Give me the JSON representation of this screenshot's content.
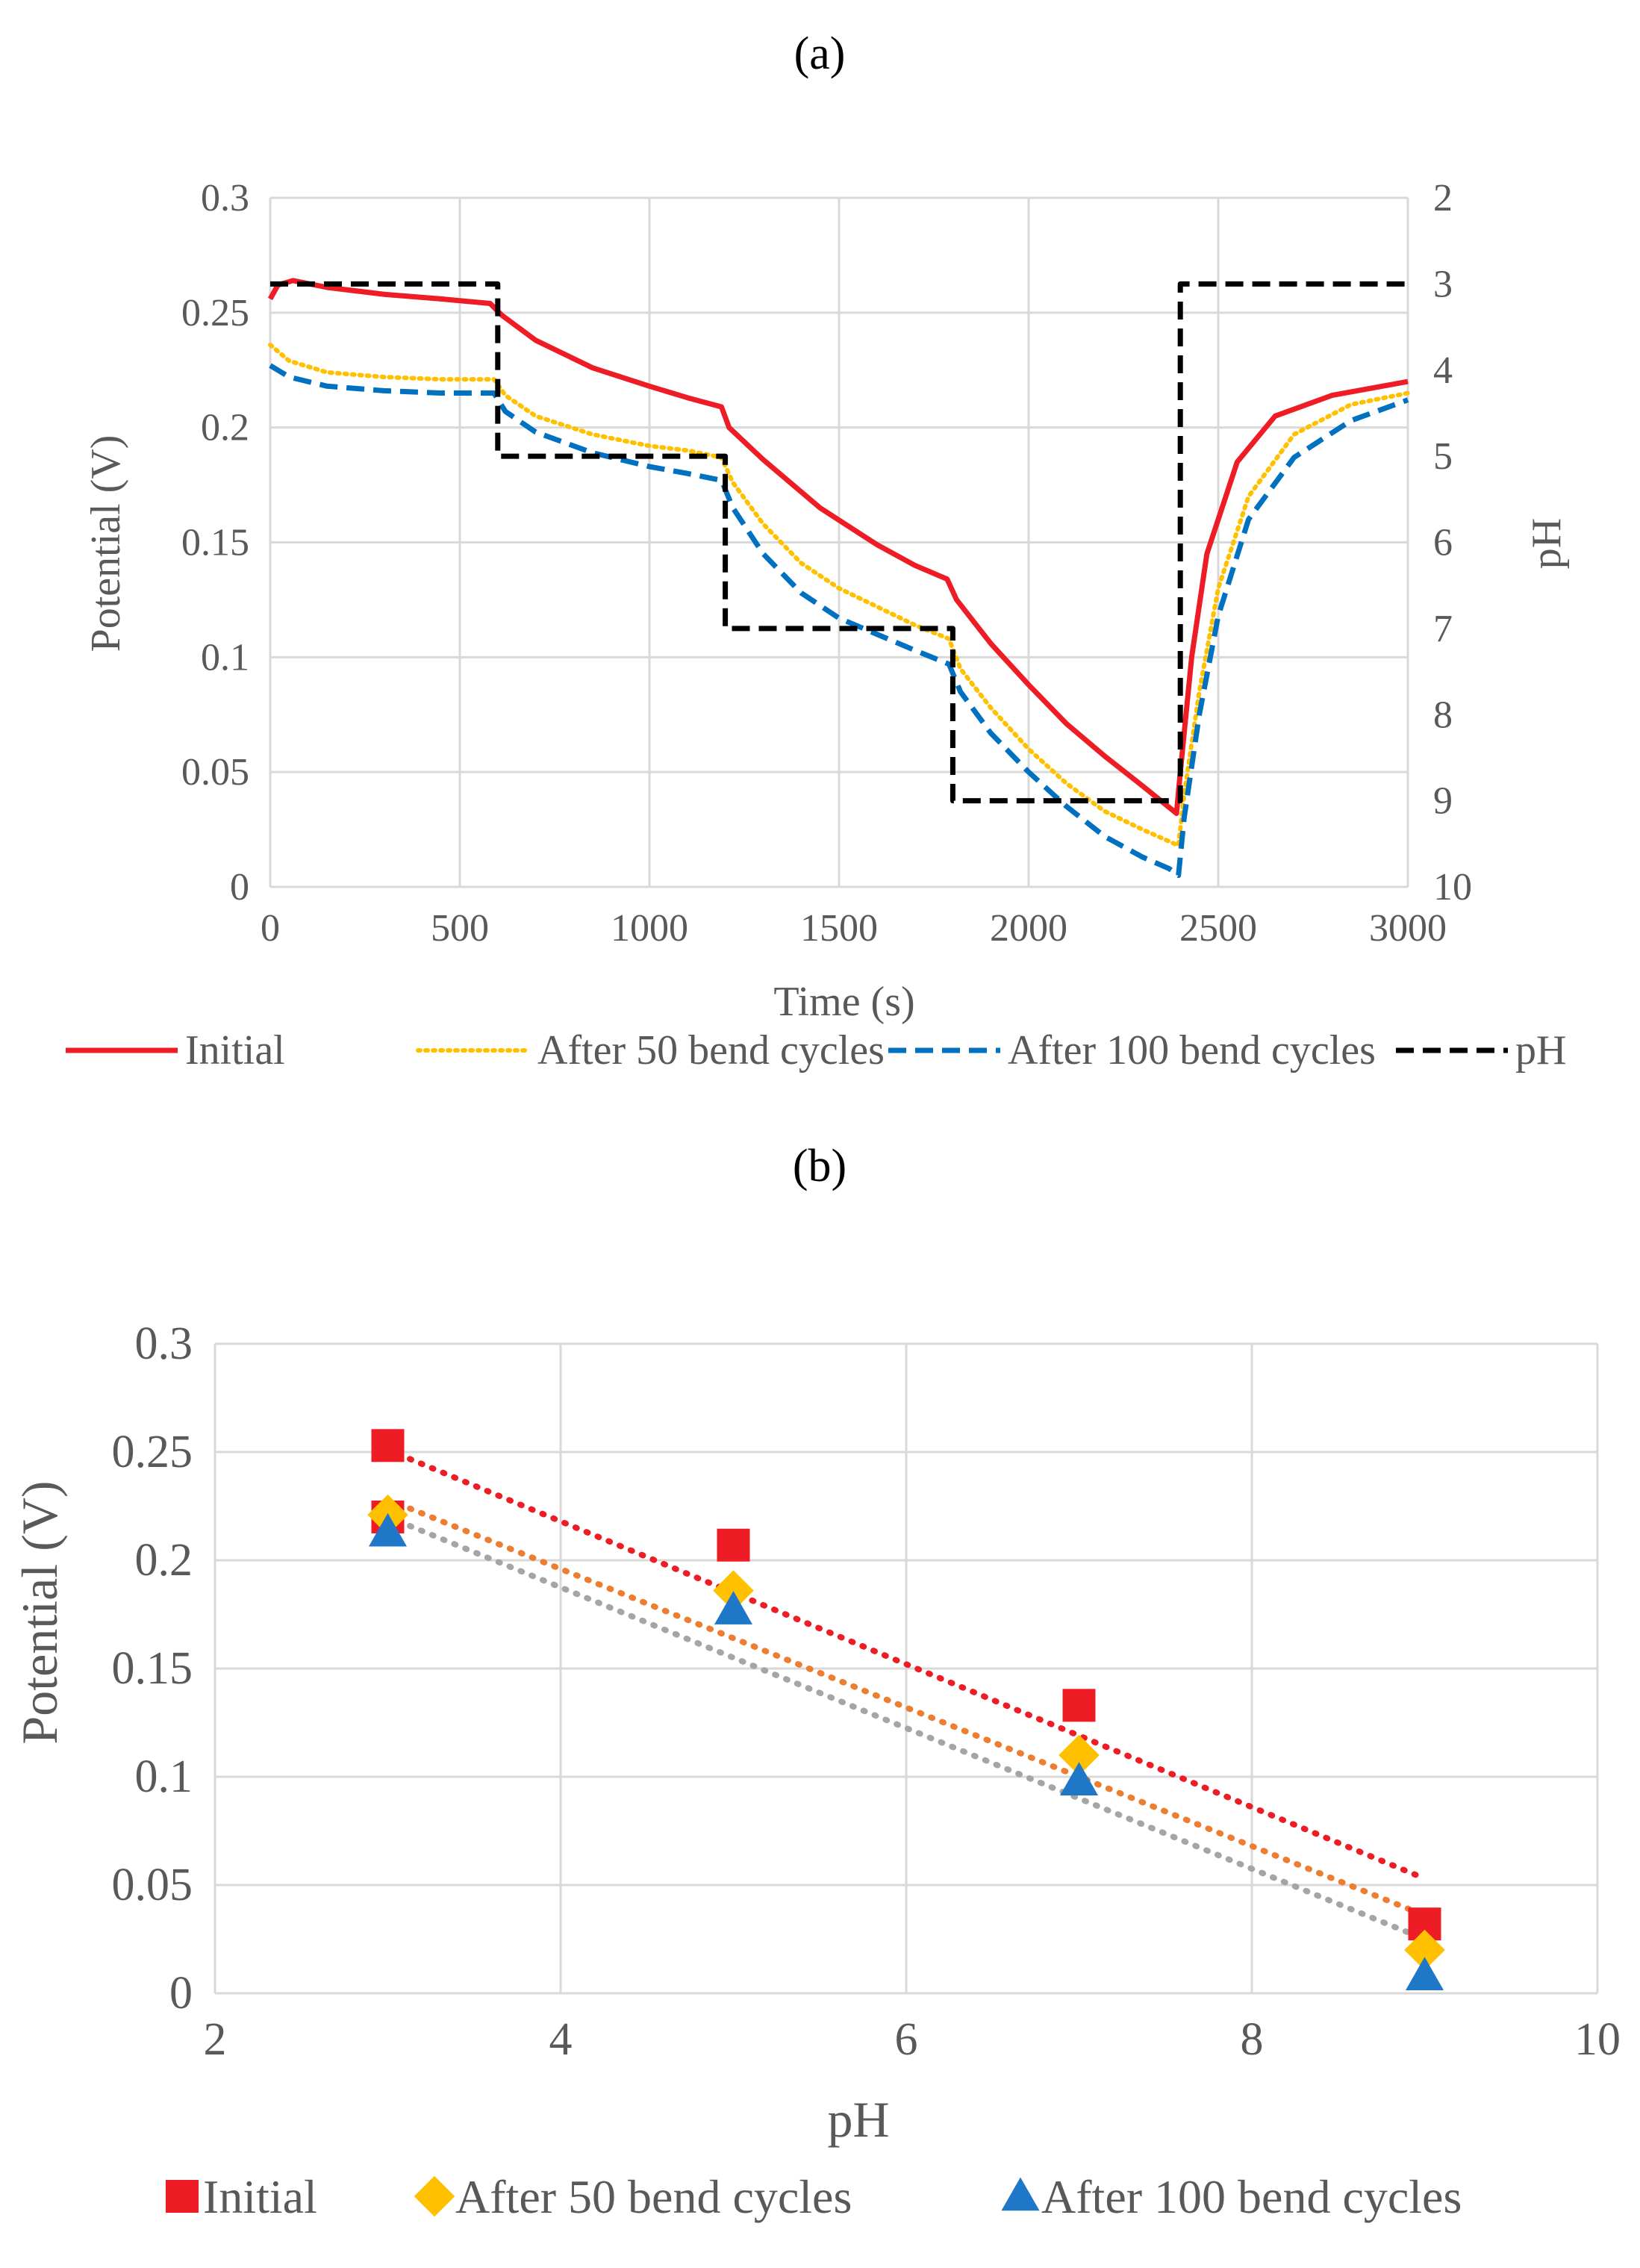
{
  "chart_data": [
    {
      "panel_label": "(a)",
      "type": "line",
      "xlabel": "Time (s)",
      "ylabel": "Potential (V)",
      "y2label": "pH",
      "xlim": [
        0,
        3000
      ],
      "ylim": [
        0,
        0.3
      ],
      "y2lim": [
        2,
        10
      ],
      "y2_reversed": true,
      "xticks": [
        "0",
        "500",
        "1000",
        "1500",
        "2000",
        "2500",
        "3000"
      ],
      "yticks": [
        "0",
        "0.05",
        "0.1",
        "0.15",
        "0.2",
        "0.25",
        "0.3"
      ],
      "y2ticks": [
        "2",
        "3",
        "4",
        "5",
        "6",
        "7",
        "8",
        "9",
        "10"
      ],
      "grid": true,
      "legend_position": "bottom",
      "series": [
        {
          "name": "Initial",
          "axis": "y",
          "color": "#ee1c25",
          "style": "solid",
          "points": [
            [
              0,
              0.256
            ],
            [
              20,
              0.262
            ],
            [
              60,
              0.264
            ],
            [
              150,
              0.261
            ],
            [
              300,
              0.258
            ],
            [
              450,
              0.256
            ],
            [
              580,
              0.254
            ],
            [
              610,
              0.249
            ],
            [
              700,
              0.238
            ],
            [
              850,
              0.226
            ],
            [
              1000,
              0.218
            ],
            [
              1100,
              0.213
            ],
            [
              1190,
              0.209
            ],
            [
              1210,
              0.2
            ],
            [
              1300,
              0.186
            ],
            [
              1450,
              0.165
            ],
            [
              1600,
              0.149
            ],
            [
              1700,
              0.14
            ],
            [
              1785,
              0.134
            ],
            [
              1810,
              0.125
            ],
            [
              1900,
              0.106
            ],
            [
              2000,
              0.088
            ],
            [
              2100,
              0.071
            ],
            [
              2200,
              0.057
            ],
            [
              2300,
              0.044
            ],
            [
              2390,
              0.032
            ],
            [
              2400,
              0.05
            ],
            [
              2430,
              0.1
            ],
            [
              2470,
              0.145
            ],
            [
              2550,
              0.185
            ],
            [
              2650,
              0.205
            ],
            [
              2800,
              0.214
            ],
            [
              3000,
              0.22
            ]
          ]
        },
        {
          "name": "After 50 bend cycles",
          "axis": "y",
          "color": "#ffc000",
          "style": "dotted",
          "points": [
            [
              0,
              0.236
            ],
            [
              50,
              0.229
            ],
            [
              150,
              0.224
            ],
            [
              300,
              0.222
            ],
            [
              450,
              0.221
            ],
            [
              590,
              0.221
            ],
            [
              620,
              0.214
            ],
            [
              700,
              0.205
            ],
            [
              850,
              0.197
            ],
            [
              1000,
              0.192
            ],
            [
              1100,
              0.19
            ],
            [
              1190,
              0.187
            ],
            [
              1220,
              0.176
            ],
            [
              1300,
              0.158
            ],
            [
              1400,
              0.141
            ],
            [
              1500,
              0.13
            ],
            [
              1600,
              0.122
            ],
            [
              1700,
              0.114
            ],
            [
              1790,
              0.108
            ],
            [
              1820,
              0.095
            ],
            [
              1900,
              0.078
            ],
            [
              2000,
              0.06
            ],
            [
              2100,
              0.045
            ],
            [
              2200,
              0.033
            ],
            [
              2300,
              0.025
            ],
            [
              2395,
              0.018
            ],
            [
              2410,
              0.04
            ],
            [
              2450,
              0.085
            ],
            [
              2500,
              0.13
            ],
            [
              2580,
              0.17
            ],
            [
              2700,
              0.197
            ],
            [
              2850,
              0.21
            ],
            [
              3000,
              0.215
            ]
          ]
        },
        {
          "name": "After 100 bend cycles",
          "axis": "y",
          "color": "#0070c0",
          "style": "dashed",
          "points": [
            [
              0,
              0.227
            ],
            [
              50,
              0.222
            ],
            [
              150,
              0.218
            ],
            [
              300,
              0.216
            ],
            [
              450,
              0.215
            ],
            [
              590,
              0.215
            ],
            [
              620,
              0.207
            ],
            [
              700,
              0.198
            ],
            [
              850,
              0.189
            ],
            [
              1000,
              0.183
            ],
            [
              1100,
              0.18
            ],
            [
              1190,
              0.177
            ],
            [
              1220,
              0.165
            ],
            [
              1300,
              0.145
            ],
            [
              1400,
              0.128
            ],
            [
              1500,
              0.117
            ],
            [
              1600,
              0.11
            ],
            [
              1700,
              0.103
            ],
            [
              1790,
              0.097
            ],
            [
              1820,
              0.085
            ],
            [
              1900,
              0.067
            ],
            [
              2000,
              0.05
            ],
            [
              2100,
              0.035
            ],
            [
              2200,
              0.022
            ],
            [
              2300,
              0.013
            ],
            [
              2370,
              0.008
            ],
            [
              2395,
              0.005
            ],
            [
              2410,
              0.03
            ],
            [
              2450,
              0.075
            ],
            [
              2500,
              0.118
            ],
            [
              2580,
              0.16
            ],
            [
              2700,
              0.187
            ],
            [
              2850,
              0.203
            ],
            [
              3000,
              0.212
            ]
          ]
        },
        {
          "name": "pH",
          "axis": "y2",
          "color": "#000000",
          "style": "dashed",
          "points": [
            [
              0,
              3
            ],
            [
              600,
              3
            ],
            [
              600,
              5
            ],
            [
              1200,
              5
            ],
            [
              1200,
              7
            ],
            [
              1800,
              7
            ],
            [
              1800,
              9
            ],
            [
              2400,
              9
            ],
            [
              2400,
              3
            ],
            [
              3000,
              3
            ]
          ]
        }
      ]
    },
    {
      "panel_label": "(b)",
      "type": "scatter",
      "xlabel": "pH",
      "ylabel": "Potential (V)",
      "xlim": [
        2,
        10
      ],
      "ylim": [
        0,
        0.3
      ],
      "xticks": [
        "2",
        "4",
        "6",
        "8",
        "10"
      ],
      "yticks": [
        "0",
        "0.05",
        "0.1",
        "0.15",
        "0.2",
        "0.25",
        "0.3"
      ],
      "grid": true,
      "legend_position": "bottom",
      "series": [
        {
          "name": "Initial",
          "marker": "square",
          "color": "#ee1c25",
          "x": [
            3,
            3,
            5,
            7,
            9
          ],
          "y": [
            0.253,
            0.22,
            0.207,
            0.133,
            0.032
          ],
          "trendline": {
            "color": "#ee1c25",
            "x": [
              3,
              9
            ],
            "y": [
              0.251,
              0.053
            ]
          }
        },
        {
          "name": "After 50 bend cycles",
          "marker": "diamond",
          "color": "#ffc000",
          "x": [
            3,
            5,
            7,
            9
          ],
          "y": [
            0.221,
            0.186,
            0.11,
            0.02
          ],
          "trendline": {
            "color": "#ed7d31",
            "x": [
              3,
              9
            ],
            "y": [
              0.228,
              0.036
            ]
          }
        },
        {
          "name": "After 100 bend cycles",
          "marker": "triangle",
          "color": "#1f77c8",
          "x": [
            3,
            5,
            7,
            9
          ],
          "y": [
            0.213,
            0.177,
            0.098,
            0.008
          ],
          "trendline": {
            "color": "#a5a5a5",
            "x": [
              3,
              9
            ],
            "y": [
              0.22,
              0.025
            ]
          }
        }
      ]
    }
  ]
}
